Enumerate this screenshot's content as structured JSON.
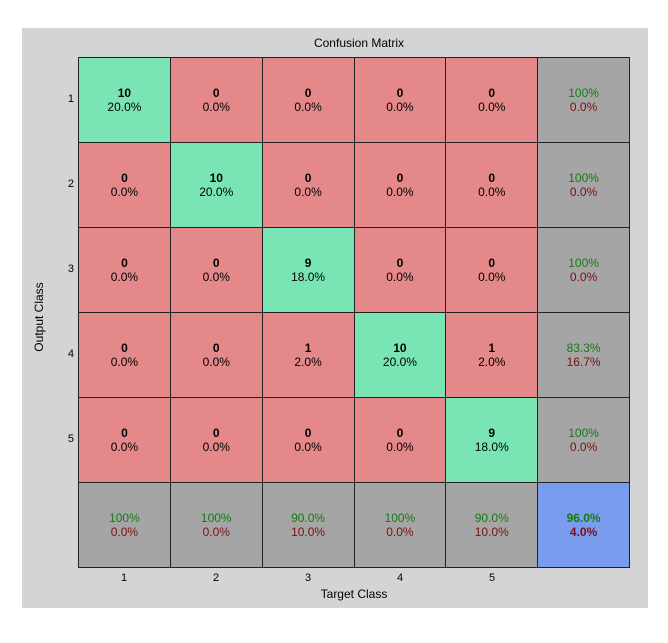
{
  "chart_data": {
    "type": "heatmap",
    "title": "Confusion Matrix",
    "xlabel": "Target Class",
    "ylabel": "Output Class",
    "x_tick_labels": [
      "1",
      "2",
      "3",
      "4",
      "5"
    ],
    "y_tick_labels": [
      "1",
      "2",
      "3",
      "4",
      "5"
    ],
    "counts": [
      [
        10,
        0,
        0,
        0,
        0
      ],
      [
        0,
        10,
        0,
        0,
        0
      ],
      [
        0,
        0,
        9,
        0,
        0
      ],
      [
        0,
        0,
        1,
        10,
        1
      ],
      [
        0,
        0,
        0,
        0,
        9
      ]
    ],
    "percentages": [
      [
        "20.0%",
        "0.0%",
        "0.0%",
        "0.0%",
        "0.0%"
      ],
      [
        "0.0%",
        "20.0%",
        "0.0%",
        "0.0%",
        "0.0%"
      ],
      [
        "0.0%",
        "0.0%",
        "18.0%",
        "0.0%",
        "0.0%"
      ],
      [
        "0.0%",
        "0.0%",
        "2.0%",
        "20.0%",
        "2.0%"
      ],
      [
        "0.0%",
        "0.0%",
        "0.0%",
        "0.0%",
        "18.0%"
      ]
    ],
    "row_summary": [
      {
        "correct": "100%",
        "incorrect": "0.0%"
      },
      {
        "correct": "100%",
        "incorrect": "0.0%"
      },
      {
        "correct": "100%",
        "incorrect": "0.0%"
      },
      {
        "correct": "83.3%",
        "incorrect": "16.7%"
      },
      {
        "correct": "100%",
        "incorrect": "0.0%"
      }
    ],
    "column_summary": [
      {
        "correct": "100%",
        "incorrect": "0.0%"
      },
      {
        "correct": "100%",
        "incorrect": "0.0%"
      },
      {
        "correct": "90.0%",
        "incorrect": "10.0%"
      },
      {
        "correct": "100%",
        "incorrect": "0.0%"
      },
      {
        "correct": "90.0%",
        "incorrect": "10.0%"
      }
    ],
    "overall": {
      "correct": "96.0%",
      "incorrect": "4.0%"
    },
    "colors": {
      "correct_cell": "#79e5b4",
      "wrong_cell": "#e5888a",
      "summary_cell": "#a5a5a5",
      "overall_cell": "#7a9cee",
      "good_text": "#147a14",
      "bad_text": "#7a1010",
      "figure_background": "#d4d4d4"
    }
  }
}
